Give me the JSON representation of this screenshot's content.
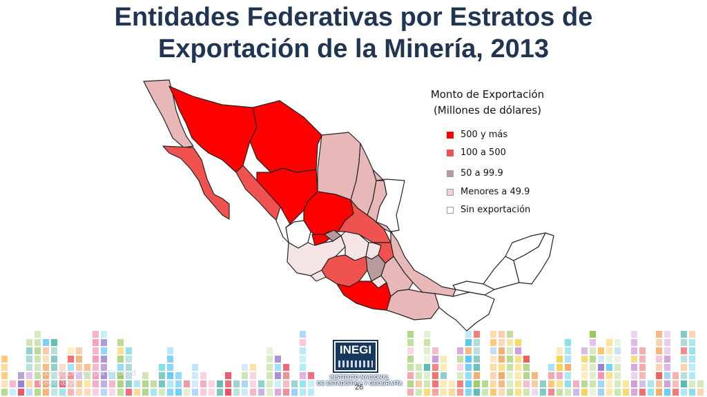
{
  "title_line1": "Entidades Federativas por Estratos de",
  "title_line2": "Exportación de la Minería, 2013",
  "legend": {
    "title_line1": "Monto de Exportación",
    "title_line2": "(Millones de dólares)",
    "items": [
      {
        "label": "500 y más",
        "color": "#ff0000"
      },
      {
        "label": "100 a 500",
        "color": "#f0534f"
      },
      {
        "label": "50 a 99.9",
        "color": "#b89a9c"
      },
      {
        "label": "Menores a 49.9",
        "color": "#efd4d4"
      },
      {
        "label": "Sin exportación",
        "color": "#ffffff"
      }
    ]
  },
  "map_colors": {
    "very_high": "#ff0000",
    "high": "#f0534f",
    "mid": "#b89a9c",
    "low": "#e8b8b9",
    "very_low": "#f5e4e4",
    "none": "#ffffff",
    "border": "#222222"
  },
  "logo": {
    "name": "INEGI",
    "line1": "INSTITUTO NACIONAL",
    "line2": "DE ESTADÍSTICA Y GEOGRAFÍA"
  },
  "footer_note": "Exportaciones por Entidad Federativa",
  "page_number": "26"
}
